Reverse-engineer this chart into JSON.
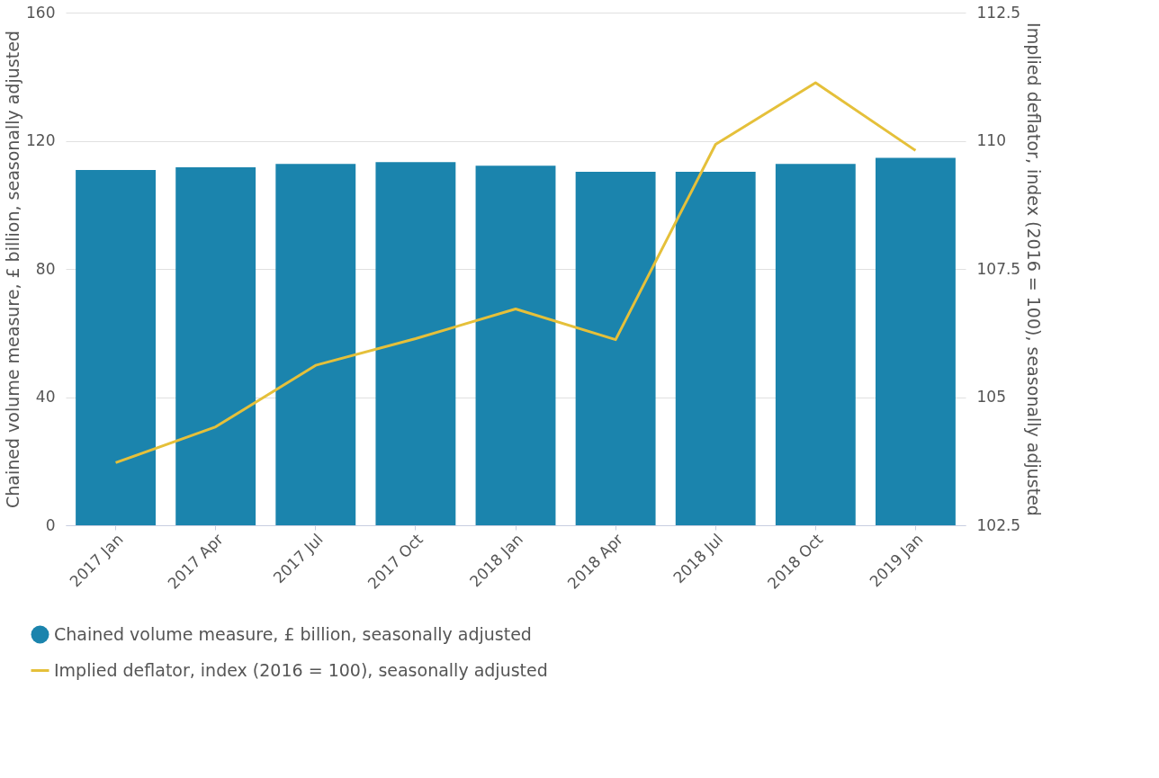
{
  "chart_data": {
    "type": "bar",
    "categories": [
      "2017 Jan",
      "2017 Apr",
      "2017 Jul",
      "2017 Oct",
      "2018 Jan",
      "2018 Apr",
      "2018 Jul",
      "2018 Oct",
      "2019 Jan"
    ],
    "ylabel": "Chained volume measure, £ billion, seasonally adjusted",
    "y2label": "Implied deflator, index (2016 = 100), seasonally adjusted",
    "ylim": [
      0,
      160
    ],
    "yticks": [
      0,
      40,
      80,
      120,
      160
    ],
    "y2lim": [
      102.5,
      112.5
    ],
    "y2ticks": [
      {
        "value": 102.5,
        "label": "102.5"
      },
      105,
      {
        "value": 107.5,
        "label": "107.5"
      },
      110,
      {
        "value": 112.5,
        "label": "112.5"
      }
    ],
    "grid": "y",
    "legend": "bottom",
    "series": [
      {
        "name": "Chained volume measure, £ billion, seasonally adjusted",
        "color": "#1b84ad",
        "values": [
          110.9,
          111.7,
          112.8,
          113.3,
          112.2,
          110.3,
          110.3,
          112.8,
          114.7
        ]
      },
      {
        "name": "Implied deflator, index (2016 = 100), seasonally adjusted",
        "type": "line",
        "axis": "y2",
        "color": "#e5c03a",
        "values": [
          103.72,
          104.42,
          105.62,
          106.14,
          106.72,
          106.12,
          109.93,
          111.13,
          109.81
        ]
      }
    ]
  }
}
